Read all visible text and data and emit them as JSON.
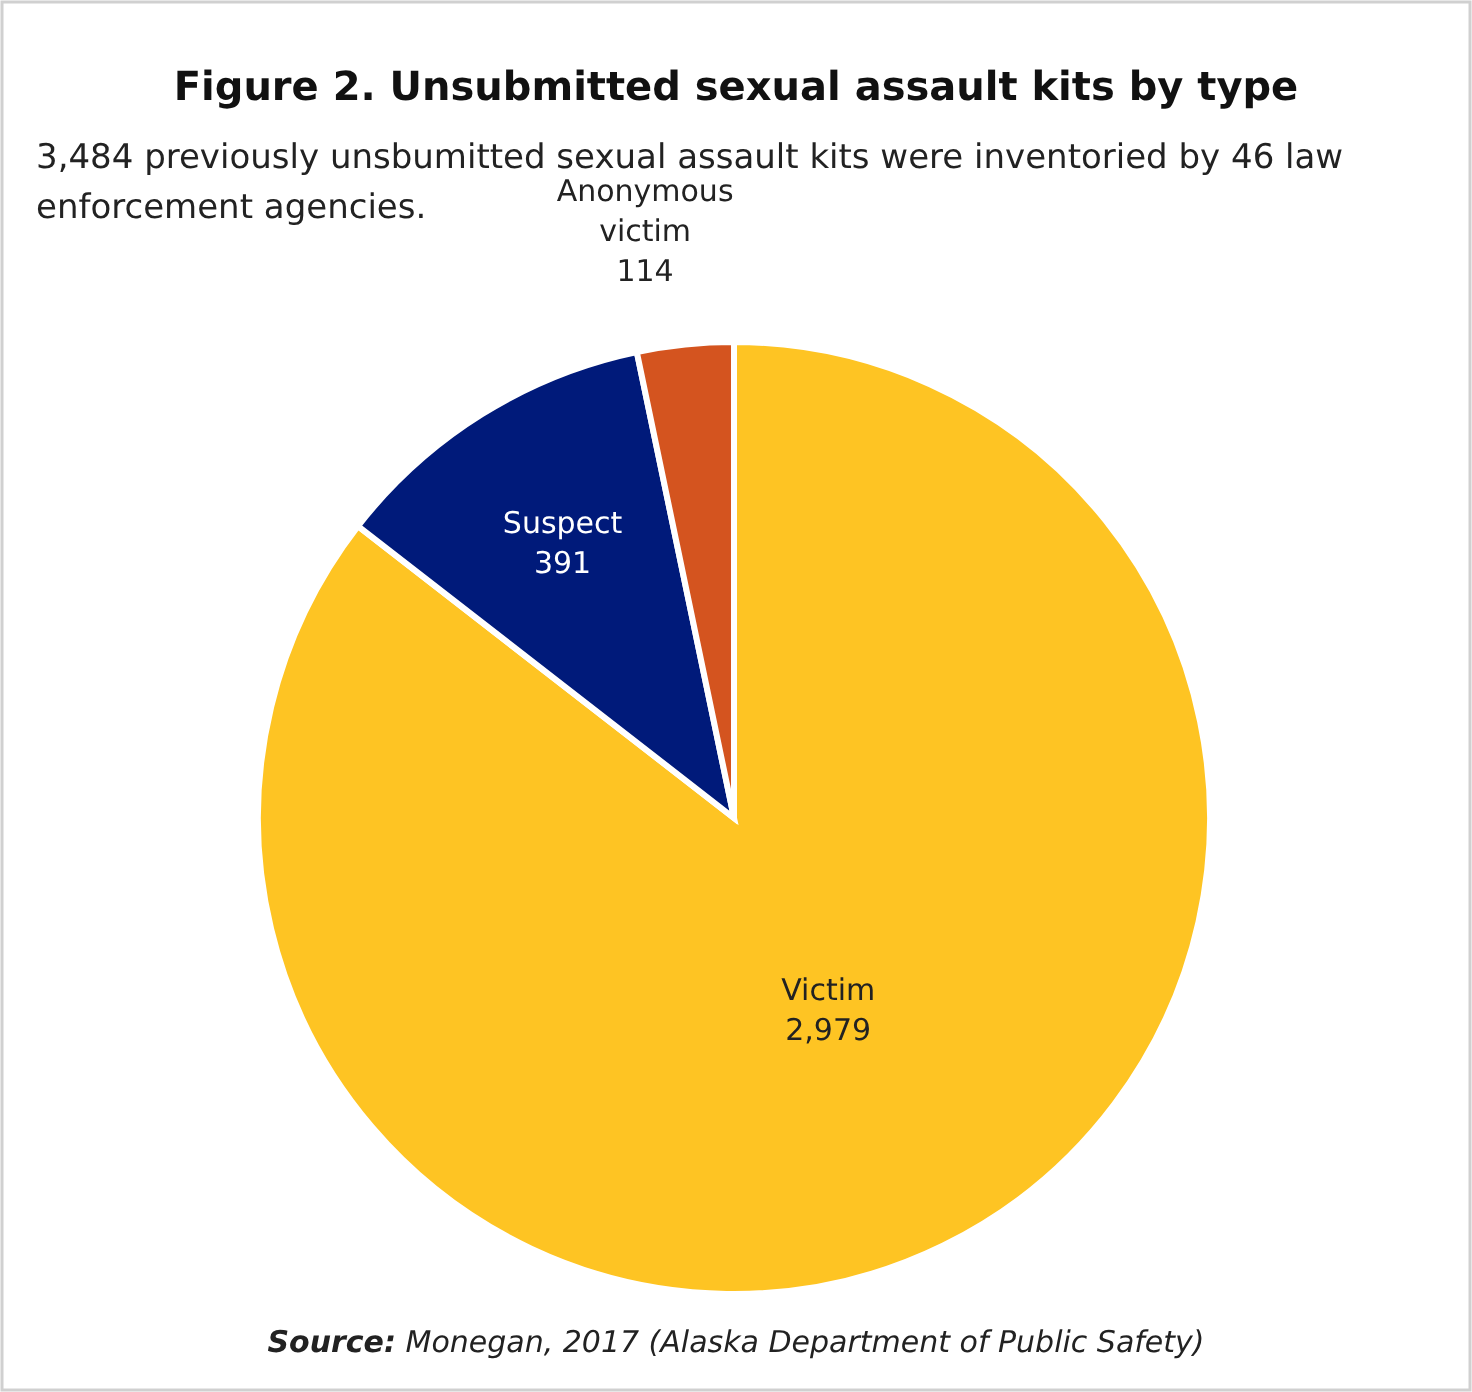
{
  "chart_data": {
    "type": "pie",
    "title": "Figure 2. Unsubmitted sexual assault kits by type",
    "subtitle": "3,484 previously unsbumitted sexual assault kits were inventoried by 46 law enforcement agencies.",
    "categories": [
      "Victim",
      "Suspect",
      "Anonymous victim"
    ],
    "values": [
      2979,
      391,
      114
    ],
    "value_labels": [
      "2,979",
      "391",
      "114"
    ],
    "colors": [
      "#fec423",
      "#001a7a",
      "#d4541f"
    ],
    "annotations": [
      "Source: Monegan, 2017 (Alaska Department of Public Safety)"
    ]
  }
}
